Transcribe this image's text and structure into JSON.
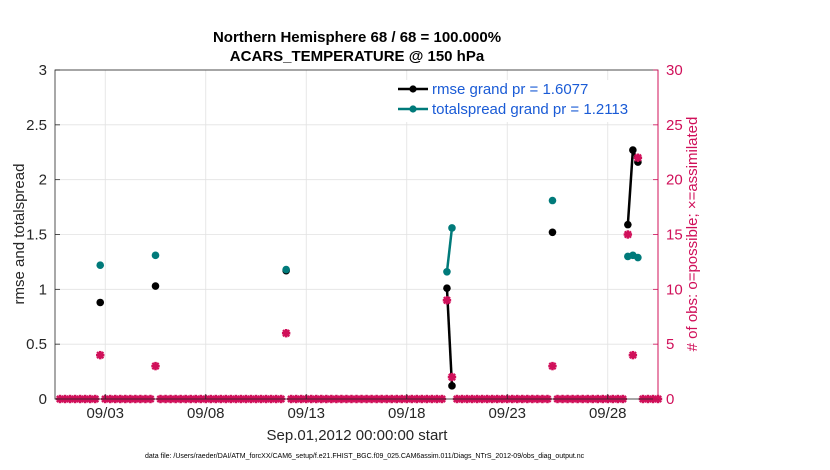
{
  "chart_data": {
    "type": "line",
    "title": "Northern Hemisphere 68 / 68 = 100.000%",
    "subtitle": "ACARS_TEMPERATURE @ 150 hPa",
    "xlabel": "Sep.01,2012 00:00:00 start",
    "ylabel": "rmse and totalspread",
    "y2label": "# of obs: o=possible; ×=assimilated",
    "footnote": "data file: /Users/raeder/DAI/ATM_forcXX/CAM6_setup/f.e21.FHIST_BGC.f09_025.CAM6assim.011/Diags_NTrS_2012-09/obs_diag_output.nc",
    "xlim": [
      0.5,
      30.5
    ],
    "ylim": [
      0,
      3
    ],
    "y2lim": [
      0,
      30
    ],
    "x_tick_values": [
      3,
      8,
      13,
      18,
      23,
      28
    ],
    "x_tick_labels": [
      "09/03",
      "09/08",
      "09/13",
      "09/18",
      "09/23",
      "09/28"
    ],
    "y_ticks": [
      "0",
      "0.5",
      "1",
      "1.5",
      "2",
      "2.5",
      "3"
    ],
    "y2_ticks": [
      "0",
      "5",
      "10",
      "15",
      "20",
      "25",
      "30"
    ],
    "grid": true,
    "legend_position": "top-right",
    "series": [
      {
        "name": "rmse grand pr = 1.6077",
        "color": "#000000",
        "segments": [
          [
            [
              2.75,
              0.88
            ]
          ],
          [
            [
              5.5,
              1.03
            ]
          ],
          [
            [
              12.0,
              1.17
            ]
          ],
          [
            [
              20.0,
              1.01
            ],
            [
              20.25,
              0.12
            ]
          ],
          [
            [
              25.25,
              1.52
            ]
          ],
          [
            [
              29.0,
              1.59
            ],
            [
              29.25,
              2.27
            ],
            [
              29.5,
              2.16
            ]
          ]
        ]
      },
      {
        "name": "totalspread grand pr = 1.2113",
        "color": "#007a7a",
        "segments": [
          [
            [
              2.75,
              1.22
            ]
          ],
          [
            [
              5.5,
              1.31
            ]
          ],
          [
            [
              12.0,
              1.18
            ]
          ],
          [
            [
              20.0,
              1.16
            ],
            [
              20.25,
              1.56
            ]
          ],
          [
            [
              25.25,
              1.81
            ]
          ],
          [
            [
              29.0,
              1.3
            ],
            [
              29.25,
              1.31
            ],
            [
              29.5,
              1.29
            ]
          ]
        ]
      }
    ],
    "obs_assimilated": {
      "color": "#d0105a",
      "points": [
        [
          2.75,
          4
        ],
        [
          5.5,
          3
        ],
        [
          12.0,
          6
        ],
        [
          20.0,
          9
        ],
        [
          20.25,
          2
        ],
        [
          25.25,
          3
        ],
        [
          29.0,
          15
        ],
        [
          29.25,
          4
        ],
        [
          29.5,
          22
        ]
      ],
      "zero_x_start": 0.75,
      "zero_x_end": 30.5,
      "zero_x_step": 0.25
    }
  }
}
